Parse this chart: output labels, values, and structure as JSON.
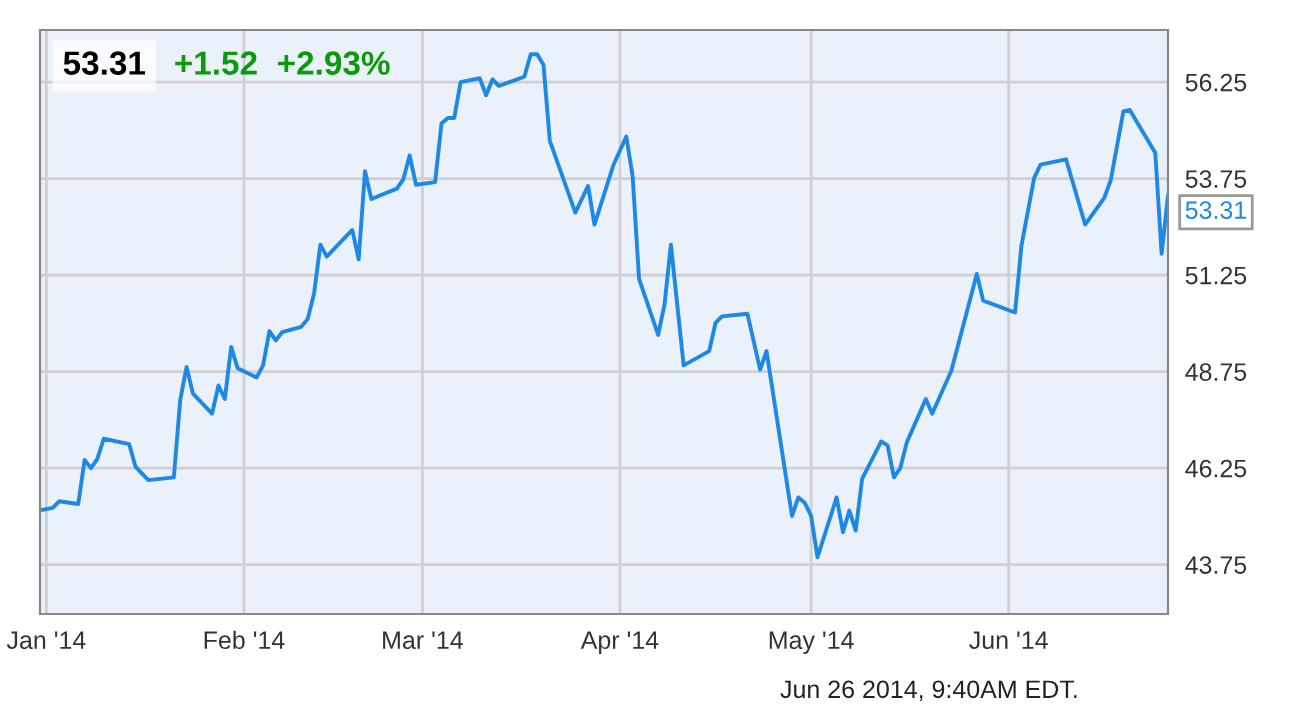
{
  "chart_data": {
    "type": "line",
    "title": "53.31",
    "subtitle": "+1.52  +2.93%",
    "x": [
      "2013-12-31",
      "2014-01-02",
      "2014-01-03",
      "2014-01-06",
      "2014-01-07",
      "2014-01-08",
      "2014-01-09",
      "2014-01-10",
      "2014-01-14",
      "2014-01-15",
      "2014-01-17",
      "2014-01-21",
      "2014-01-22",
      "2014-01-23",
      "2014-01-24",
      "2014-01-27",
      "2014-01-28",
      "2014-01-29",
      "2014-01-30",
      "2014-01-31",
      "2014-02-03",
      "2014-02-04",
      "2014-02-05",
      "2014-02-06",
      "2014-02-07",
      "2014-02-10",
      "2014-02-11",
      "2014-02-12",
      "2014-02-13",
      "2014-02-14",
      "2014-02-18",
      "2014-02-19",
      "2014-02-20",
      "2014-02-21",
      "2014-02-25",
      "2014-02-26",
      "2014-02-27",
      "2014-02-28",
      "2014-03-03",
      "2014-03-04",
      "2014-03-05",
      "2014-03-06",
      "2014-03-07",
      "2014-03-10",
      "2014-03-11",
      "2014-03-12",
      "2014-03-13",
      "2014-03-17",
      "2014-03-18",
      "2014-03-19",
      "2014-03-20",
      "2014-03-21",
      "2014-03-25",
      "2014-03-27",
      "2014-03-28",
      "2014-03-31",
      "2014-04-02",
      "2014-04-03",
      "2014-04-04",
      "2014-04-07",
      "2014-04-08",
      "2014-04-09",
      "2014-04-11",
      "2014-04-15",
      "2014-04-16",
      "2014-04-17",
      "2014-04-21",
      "2014-04-23",
      "2014-04-24",
      "2014-04-28",
      "2014-04-29",
      "2014-04-30",
      "2014-05-01",
      "2014-05-02",
      "2014-05-05",
      "2014-05-06",
      "2014-05-07",
      "2014-05-08",
      "2014-05-09",
      "2014-05-12",
      "2014-05-13",
      "2014-05-14",
      "2014-05-15",
      "2014-05-16",
      "2014-05-19",
      "2014-05-20",
      "2014-05-23",
      "2014-05-27",
      "2014-05-28",
      "2014-06-02",
      "2014-06-03",
      "2014-06-05",
      "2014-06-06",
      "2014-06-10",
      "2014-06-13",
      "2014-06-16",
      "2014-06-17",
      "2014-06-19",
      "2014-06-20",
      "2014-06-24",
      "2014-06-25",
      "2014-06-26"
    ],
    "series": [
      {
        "color": "#1e88e5",
        "values": [
          45.16,
          45.22,
          45.39,
          45.32,
          46.46,
          46.25,
          46.49,
          47.01,
          46.87,
          46.28,
          45.94,
          46.01,
          48.01,
          48.87,
          48.18,
          47.66,
          48.39,
          48.04,
          49.39,
          48.84,
          48.6,
          48.91,
          49.8,
          49.56,
          49.77,
          49.91,
          50.11,
          50.77,
          52.04,
          51.73,
          52.42,
          51.66,
          53.94,
          53.22,
          53.49,
          53.73,
          54.35,
          53.59,
          53.66,
          55.18,
          55.32,
          55.32,
          56.25,
          56.35,
          55.91,
          56.32,
          56.15,
          56.39,
          56.97,
          56.97,
          56.7,
          54.73,
          52.87,
          53.56,
          52.56,
          54.11,
          54.84,
          53.8,
          51.15,
          49.7,
          50.49,
          52.04,
          48.91,
          49.28,
          50.01,
          50.18,
          50.25,
          48.8,
          49.28,
          45.01,
          45.49,
          45.35,
          45.01,
          43.94,
          45.49,
          44.59,
          45.15,
          44.63,
          45.97,
          46.94,
          46.84,
          46.01,
          46.25,
          46.91,
          48.04,
          47.66,
          48.77,
          51.28,
          50.59,
          50.28,
          52.01,
          53.77,
          54.11,
          54.25,
          52.56,
          53.25,
          53.7,
          55.49,
          55.53,
          54.42,
          51.8,
          53.31
        ]
      }
    ],
    "xlim": [
      "2013-12-31",
      "2014-06-26"
    ],
    "xticks": [
      {
        "value": "2014-01-01",
        "label": "Jan '14"
      },
      {
        "value": "2014-02-01",
        "label": "Feb '14"
      },
      {
        "value": "2014-03-01",
        "label": "Mar '14"
      },
      {
        "value": "2014-04-01",
        "label": "Apr '14"
      },
      {
        "value": "2014-05-01",
        "label": "May '14"
      },
      {
        "value": "2014-06-01",
        "label": "Jun '14"
      }
    ],
    "ylim": [
      42.47,
      57.6
    ],
    "yticks": [
      43.75,
      46.25,
      48.75,
      51.25,
      53.75,
      56.25
    ],
    "grid": true,
    "annotations": [
      {
        "text": "53.31",
        "x": "2014-06-26",
        "y": 53.31
      },
      "Jun 26 2014, 9:40AM EDT."
    ]
  }
}
